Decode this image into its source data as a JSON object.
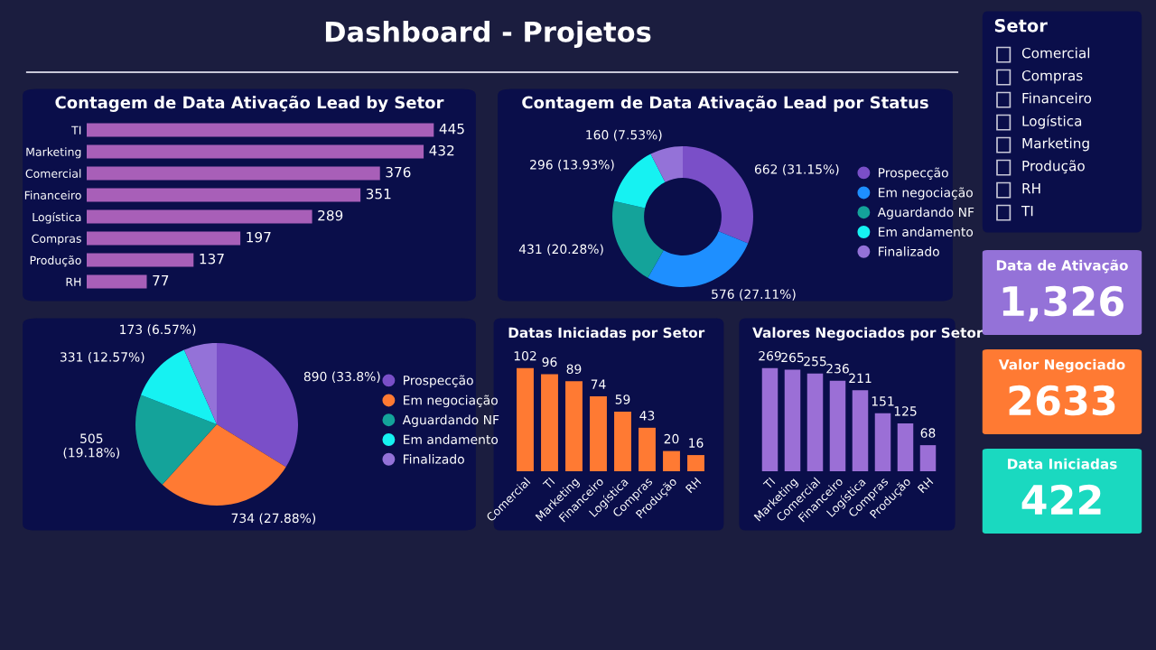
{
  "chart_data": [
    {
      "type": "other",
      "title": "Dashboard - Projetos"
    },
    {
      "type": "bar",
      "orientation": "horizontal",
      "title": "Contagem de Data Ativação Lead by Setor",
      "categories": [
        "TI",
        "Marketing",
        "Comercial",
        "Financeiro",
        "Logística",
        "Compras",
        "Produção",
        "RH"
      ],
      "values": [
        445,
        432,
        376,
        351,
        289,
        197,
        137,
        77
      ],
      "color": "#a85fb8",
      "data_labels": true
    },
    {
      "type": "donut",
      "title": "Contagem de Data Ativação Lead por Status",
      "categories": [
        "Prospecção",
        "Em negociação",
        "Aguardando NF",
        "Em andamento",
        "Finalizado"
      ],
      "values": [
        662,
        576,
        431,
        296,
        160
      ],
      "colors": [
        "#7a4fc8",
        "#1e8fff",
        "#14a39a",
        "#16f2f2",
        "#9472d8"
      ],
      "value_labels": [
        "662 (31.15%)",
        "576 (27.11%)",
        "431 (20.28%)",
        "296 (13.93%)",
        "160 (7.53%)"
      ],
      "legend": "right"
    },
    {
      "type": "pie",
      "categories": [
        "Prospecção",
        "Em negociação",
        "Aguardando NF",
        "Em andamento",
        "Finalizado"
      ],
      "values": [
        890,
        734,
        505,
        331,
        173
      ],
      "colors": [
        "#7a4fc8",
        "#ff7a33",
        "#14a39a",
        "#16f2f2",
        "#9472d8"
      ],
      "value_labels": [
        "890 (33.8%)",
        "734 (27.88%)",
        "505\n(19.18%)",
        "331 (12.57%)",
        "173 (6.57%)"
      ],
      "legend": "right"
    },
    {
      "type": "bar",
      "title": "Datas Iniciadas por Setor",
      "categories": [
        "Comercial",
        "TI",
        "Marketing",
        "Financeiro",
        "Logística",
        "Compras",
        "Produção",
        "RH"
      ],
      "values": [
        102,
        96,
        89,
        74,
        59,
        43,
        20,
        16
      ],
      "color": "#ff7a33",
      "data_labels": true
    },
    {
      "type": "bar",
      "title": "Valores Negociados por Setor",
      "categories": [
        "TI",
        "Marketing",
        "Comercial",
        "Financeiro",
        "Logística",
        "Compras",
        "Produção",
        "RH"
      ],
      "values": [
        269,
        265,
        255,
        236,
        211,
        151,
        125,
        68
      ],
      "color": "#9b6fd6",
      "data_labels": true
    },
    {
      "type": "other",
      "title": "Setor",
      "categories": [
        "Comercial",
        "Compras",
        "Financeiro",
        "Logística",
        "Marketing",
        "Produção",
        "RH",
        "TI"
      ]
    },
    {
      "type": "other",
      "title": "Data de Ativação",
      "annotations": [
        "1,326"
      ],
      "color": "#9472d8"
    },
    {
      "type": "other",
      "title": "Valor Negociado",
      "annotations": [
        "2633"
      ],
      "color": "#ff7a33"
    },
    {
      "type": "other",
      "title": "Data Iniciadas",
      "annotations": [
        "422"
      ],
      "color": "#1ad9c0"
    }
  ]
}
